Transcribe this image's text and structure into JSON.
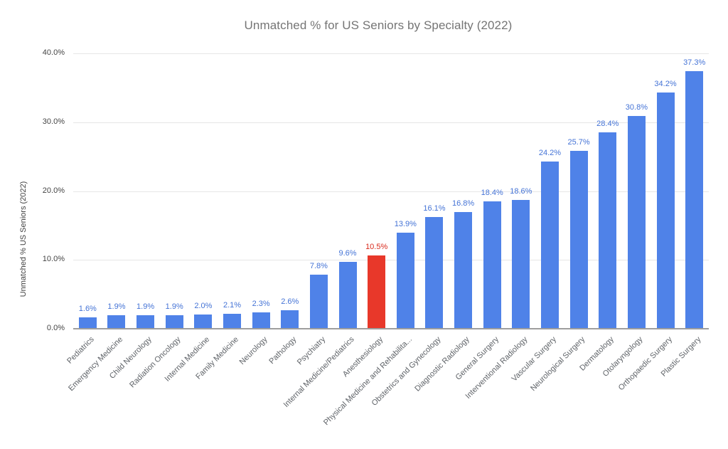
{
  "chart_data": {
    "type": "bar",
    "title": "Unmatched % for US Seniors by Specialty (2022)",
    "ylabel": "Unmatched % US Seniors (2022)",
    "xlabel": "",
    "ylim": [
      0,
      40
    ],
    "ytick_values": [
      0,
      10,
      20,
      30,
      40
    ],
    "ytick_labels": [
      "0.0%",
      "10.0%",
      "20.0%",
      "30.0%",
      "40.0%"
    ],
    "grid": true,
    "legend_position": "none",
    "categories": [
      "Pediatrics",
      "Emergency Medicine",
      "Child Neurology",
      "Radiation Oncology",
      "Internal Medicine",
      "Family Medicine",
      "Neurology",
      "Pathology",
      "Psychiatry",
      "Internal Medicine/Pediatrics",
      "Anesthesiology",
      "Physical Medicine and Rehabilita...",
      "Obstetrics and Gynecology",
      "Diagnostic Radiology",
      "General Surgery",
      "Interventional Radiology",
      "Vascular Surgery",
      "Neurological Surgery",
      "Dermatology",
      "Otolaryngology",
      "Orthopaedic Surgery",
      "Plastic Surgery"
    ],
    "values": [
      1.6,
      1.9,
      1.9,
      1.9,
      2.0,
      2.1,
      2.3,
      2.6,
      7.8,
      9.6,
      10.5,
      13.9,
      16.1,
      16.8,
      18.4,
      18.6,
      24.2,
      25.7,
      28.4,
      30.8,
      34.2,
      37.3
    ],
    "value_labels": [
      "1.6%",
      "1.9%",
      "1.9%",
      "1.9%",
      "2.0%",
      "2.1%",
      "2.3%",
      "2.6%",
      "7.8%",
      "9.6%",
      "10.5%",
      "13.9%",
      "16.1%",
      "16.8%",
      "18.4%",
      "18.6%",
      "24.2%",
      "25.7%",
      "28.4%",
      "30.8%",
      "34.2%",
      "37.3%"
    ],
    "highlight_index": 10,
    "colors": {
      "bar": "#4f82e8",
      "bar_highlight": "#e8382a",
      "value_label": "#4473d6",
      "value_label_highlight": "#d92a1c",
      "title": "#757575",
      "gridline": "#e6e6e6",
      "axis_line": "#9e9e9e"
    }
  }
}
